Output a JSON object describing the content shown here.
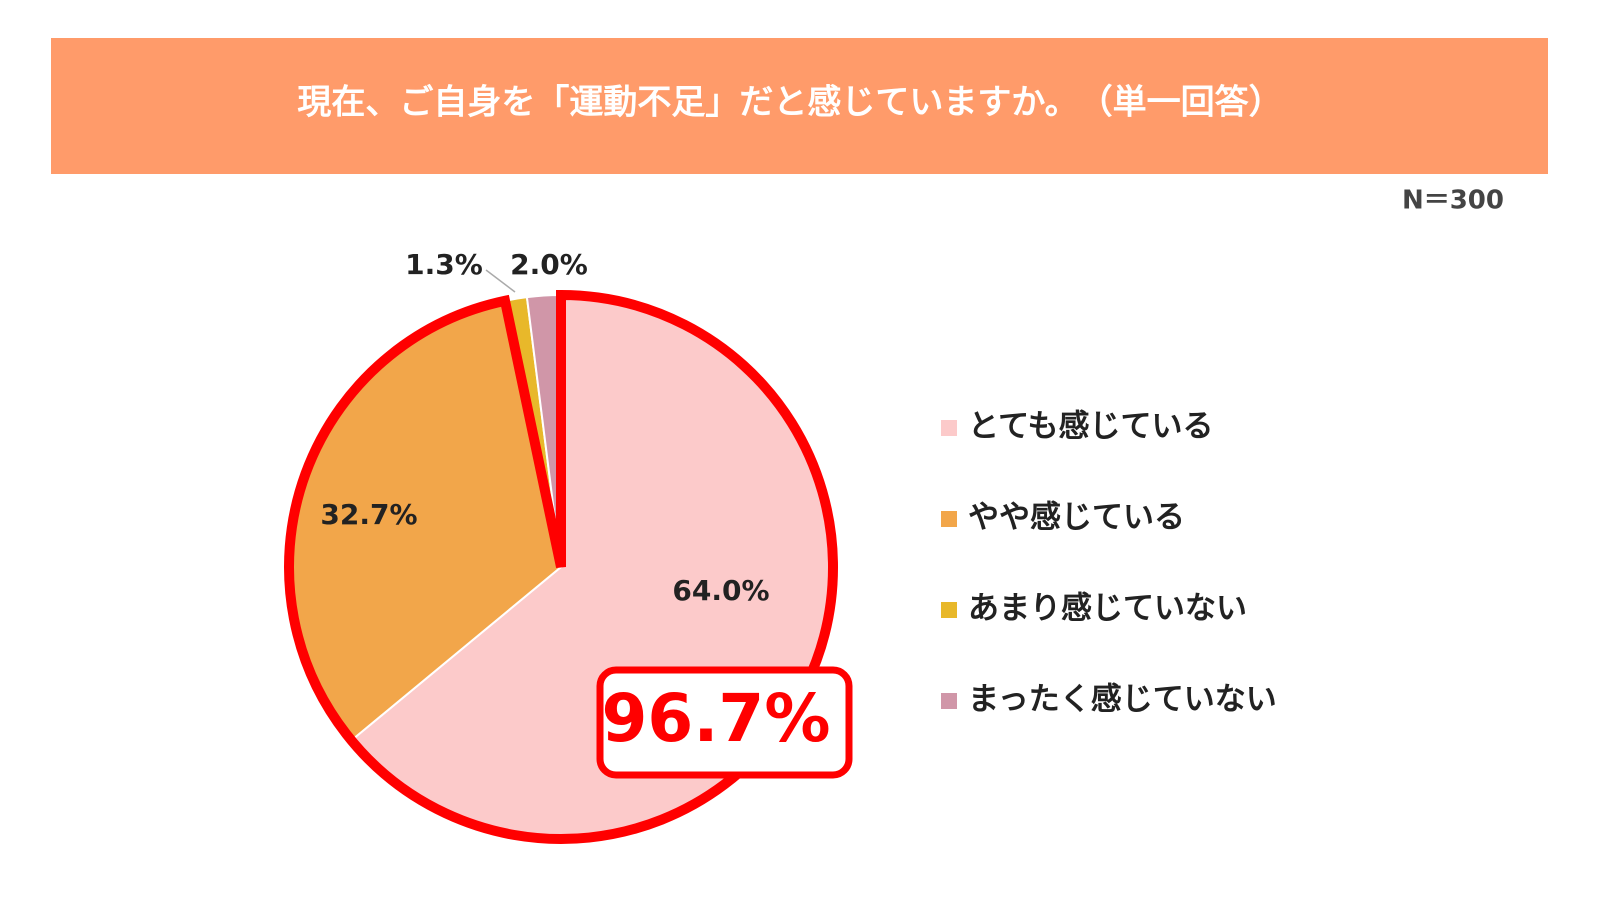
{
  "chart_data": {
    "type": "pie",
    "title": "現在、ご自身を「運動不足」だと感じていますか。　（単一回答）",
    "note": "N＝300",
    "annotation": "96.7%",
    "categories": [
      "とても感じている",
      "やや感じている",
      "あまり感じていない",
      "まったく感じていない"
    ],
    "values": [
      64.0,
      32.7,
      1.3,
      2.0
    ],
    "value_labels": [
      "64.0%",
      "32.7%",
      "1.3%",
      "2.0%"
    ],
    "colors": [
      "#fccaca",
      "#f2a64a",
      "#e8b82a",
      "#d096a8"
    ],
    "legend": "right"
  }
}
